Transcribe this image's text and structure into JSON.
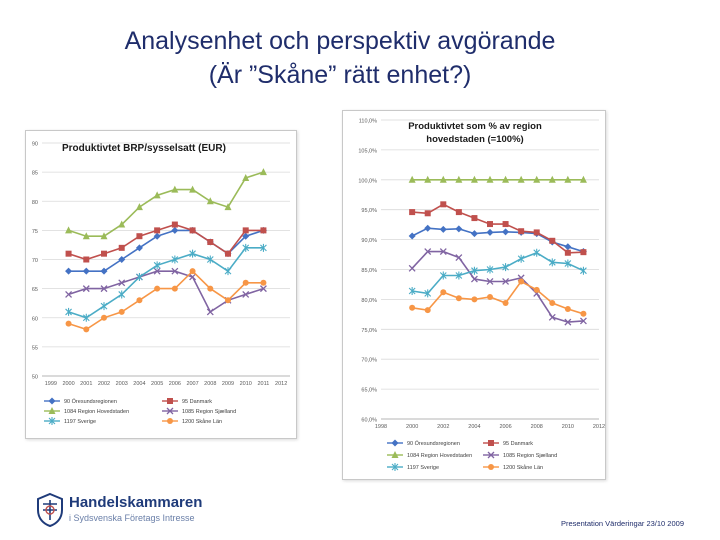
{
  "slide": {
    "title_line1": "Analysenhet och perspektiv avgörande",
    "title_line2": "(Är ”Skåne” rätt enhet?)",
    "footer": "Presentation Värderingar 23/10 2009",
    "logo_name": "Handelskammaren",
    "logo_tagline": "i Sydsvenska Företags Intresse"
  },
  "colors": {
    "s90": "#4472c4",
    "s95": "#c0504d",
    "s1084": "#9bbb59",
    "s1085": "#8064a2",
    "s1197": "#4bacc6",
    "s1200": "#f79646",
    "title": "#1f2d6b"
  },
  "chart_data": [
    {
      "type": "line",
      "title": "Produktivtet BRP/sysselsatt (EUR)",
      "x": [
        "1999",
        "2000",
        "2001",
        "2002",
        "2003",
        "2004",
        "2005",
        "2006",
        "2007",
        "2008",
        "2009",
        "2010",
        "2011",
        "2012"
      ],
      "yticks": [
        "50",
        "55",
        "60",
        "65",
        "70",
        "75",
        "80",
        "85",
        "90"
      ],
      "ylim": [
        50,
        90
      ],
      "series": [
        {
          "name": "90 Öresundsregionen",
          "color_key": "s90",
          "marker": "diamond",
          "values": [
            null,
            68,
            68,
            68,
            70,
            72,
            74,
            75,
            75,
            73,
            71,
            74,
            75,
            null
          ]
        },
        {
          "name": "95 Danmark",
          "color_key": "s95",
          "marker": "square",
          "values": [
            null,
            71,
            70,
            71,
            72,
            74,
            75,
            76,
            75,
            73,
            71,
            75,
            75,
            null
          ]
        },
        {
          "name": "1084 Region Hovedstaden",
          "color_key": "s1084",
          "marker": "triangle",
          "values": [
            null,
            75,
            74,
            74,
            76,
            79,
            81,
            82,
            82,
            80,
            79,
            84,
            85,
            null
          ]
        },
        {
          "name": "1085 Region Sjælland",
          "color_key": "s1085",
          "marker": "cross",
          "values": [
            null,
            64,
            65,
            65,
            66,
            67,
            68,
            68,
            67,
            61,
            63,
            64,
            65,
            null
          ]
        },
        {
          "name": "1197 Sverige",
          "color_key": "s1197",
          "marker": "star",
          "values": [
            null,
            61,
            60,
            62,
            64,
            67,
            69,
            70,
            71,
            70,
            68,
            72,
            72,
            null
          ]
        },
        {
          "name": "1200 Skåne Län",
          "color_key": "s1200",
          "marker": "circle",
          "values": [
            null,
            59,
            58,
            60,
            61,
            63,
            65,
            65,
            68,
            65,
            63,
            66,
            66,
            null
          ]
        }
      ]
    },
    {
      "type": "line",
      "title": "Produktivtet som % av region hovedstaden (=100%)",
      "x": [
        "1998",
        "2000",
        "2002",
        "2004",
        "2006",
        "2008",
        "2010",
        "2012"
      ],
      "yticks": [
        "60,0%",
        "65,0%",
        "70,0%",
        "75,0%",
        "80,0%",
        "85,0%",
        "90,0%",
        "95,0%",
        "100,0%",
        "105,0%",
        "110,0%"
      ],
      "ylim": [
        60,
        110
      ],
      "xlim": [
        1998,
        2012
      ],
      "series": [
        {
          "name": "90 Öresundsregionen",
          "color_key": "s90",
          "marker": "diamond",
          "x": [
            2000,
            2001,
            2002,
            2003,
            2004,
            2005,
            2006,
            2007,
            2008,
            2009,
            2010,
            2011
          ],
          "values": [
            90.6,
            91.9,
            91.7,
            91.8,
            91.0,
            91.2,
            91.3,
            91.2,
            91.0,
            89.6,
            88.8,
            88.0
          ]
        },
        {
          "name": "95 Danmark",
          "color_key": "s95",
          "marker": "square",
          "x": [
            2000,
            2001,
            2002,
            2003,
            2004,
            2005,
            2006,
            2007,
            2008,
            2009,
            2010,
            2011
          ],
          "values": [
            94.6,
            94.4,
            95.9,
            94.6,
            93.6,
            92.6,
            92.6,
            91.4,
            91.2,
            89.8,
            87.8,
            87.9
          ]
        },
        {
          "name": "1084 Region Hovedstaden",
          "color_key": "s1084",
          "marker": "triangle",
          "x": [
            2000,
            2001,
            2002,
            2003,
            2004,
            2005,
            2006,
            2007,
            2008,
            2009,
            2010,
            2011
          ],
          "values": [
            100,
            100,
            100,
            100,
            100,
            100,
            100,
            100,
            100,
            100,
            100,
            100
          ]
        },
        {
          "name": "1085 Region Sjælland",
          "color_key": "s1085",
          "marker": "cross",
          "x": [
            2000,
            2001,
            2002,
            2003,
            2004,
            2005,
            2006,
            2007,
            2008,
            2009,
            2010,
            2011
          ],
          "values": [
            85.2,
            88.0,
            88.0,
            87.0,
            83.4,
            83.0,
            83.0,
            83.6,
            81.0,
            77.0,
            76.2,
            76.4
          ]
        },
        {
          "name": "1197 Sverige",
          "color_key": "s1197",
          "marker": "star",
          "x": [
            2000,
            2001,
            2002,
            2003,
            2004,
            2005,
            2006,
            2007,
            2008,
            2009,
            2010,
            2011
          ],
          "values": [
            81.4,
            81.0,
            84.0,
            84.0,
            84.8,
            85.0,
            85.4,
            86.8,
            87.8,
            86.2,
            86.0,
            84.8
          ]
        },
        {
          "name": "1200 Skåne Län",
          "color_key": "s1200",
          "marker": "circle",
          "x": [
            2000,
            2001,
            2002,
            2003,
            2004,
            2005,
            2006,
            2007,
            2008,
            2009,
            2010,
            2011
          ],
          "values": [
            78.6,
            78.2,
            81.2,
            80.2,
            80.0,
            80.4,
            79.4,
            83.0,
            81.6,
            79.4,
            78.4,
            77.6
          ]
        }
      ]
    }
  ]
}
